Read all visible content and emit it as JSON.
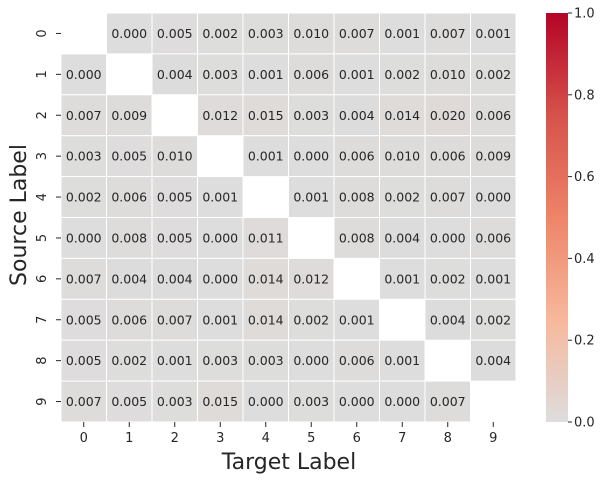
{
  "chart_data": {
    "type": "heatmap",
    "xlabel": "Target Label",
    "ylabel": "Source Label",
    "x_ticks": [
      "0",
      "1",
      "2",
      "3",
      "4",
      "5",
      "6",
      "7",
      "8",
      "9"
    ],
    "y_ticks": [
      "0",
      "1",
      "2",
      "3",
      "4",
      "5",
      "6",
      "7",
      "8",
      "9"
    ],
    "cell_labels": [
      [
        "",
        "0.000",
        "0.005",
        "0.002",
        "0.003",
        "0.010",
        "0.007",
        "0.001",
        "0.007",
        "0.001"
      ],
      [
        "0.000",
        "",
        "0.004",
        "0.003",
        "0.001",
        "0.006",
        "0.001",
        "0.002",
        "0.010",
        "0.002"
      ],
      [
        "0.007",
        "0.009",
        "",
        "0.012",
        "0.015",
        "0.003",
        "0.004",
        "0.014",
        "0.020",
        "0.006"
      ],
      [
        "0.003",
        "0.005",
        "0.010",
        "",
        "0.001",
        "0.000",
        "0.006",
        "0.010",
        "0.006",
        "0.009"
      ],
      [
        "0.002",
        "0.006",
        "0.005",
        "0.001",
        "",
        "0.001",
        "0.008",
        "0.002",
        "0.007",
        "0.000"
      ],
      [
        "0.000",
        "0.008",
        "0.005",
        "0.000",
        "0.011",
        "",
        "0.008",
        "0.004",
        "0.000",
        "0.006"
      ],
      [
        "0.007",
        "0.004",
        "0.004",
        "0.000",
        "0.014",
        "0.012",
        "",
        "0.001",
        "0.002",
        "0.001"
      ],
      [
        "0.005",
        "0.006",
        "0.007",
        "0.001",
        "0.014",
        "0.002",
        "0.001",
        "",
        "0.004",
        "0.002"
      ],
      [
        "0.005",
        "0.002",
        "0.001",
        "0.003",
        "0.003",
        "0.000",
        "0.006",
        "0.001",
        "",
        "0.004"
      ],
      [
        "0.007",
        "0.005",
        "0.003",
        "0.015",
        "0.000",
        "0.003",
        "0.000",
        "0.000",
        "0.007",
        ""
      ]
    ],
    "colorbar": {
      "min": 0.0,
      "max": 1.0,
      "ticks": [
        0.0,
        0.2,
        0.4,
        0.6,
        0.8,
        1.0
      ],
      "tick_labels": [
        "0.0",
        "0.2",
        "0.4",
        "0.6",
        "0.8",
        "1.0"
      ],
      "colormap": "coolwarm-upper",
      "stops": [
        "#dddddd",
        "#f7b89c",
        "#ee8468",
        "#d6524b",
        "#b40426"
      ]
    },
    "masked_diagonal": true,
    "colors": {
      "cell_low": "#dcdcdc",
      "cell_border": "#ffffff",
      "text": "#262626",
      "axis": "#262626"
    }
  }
}
